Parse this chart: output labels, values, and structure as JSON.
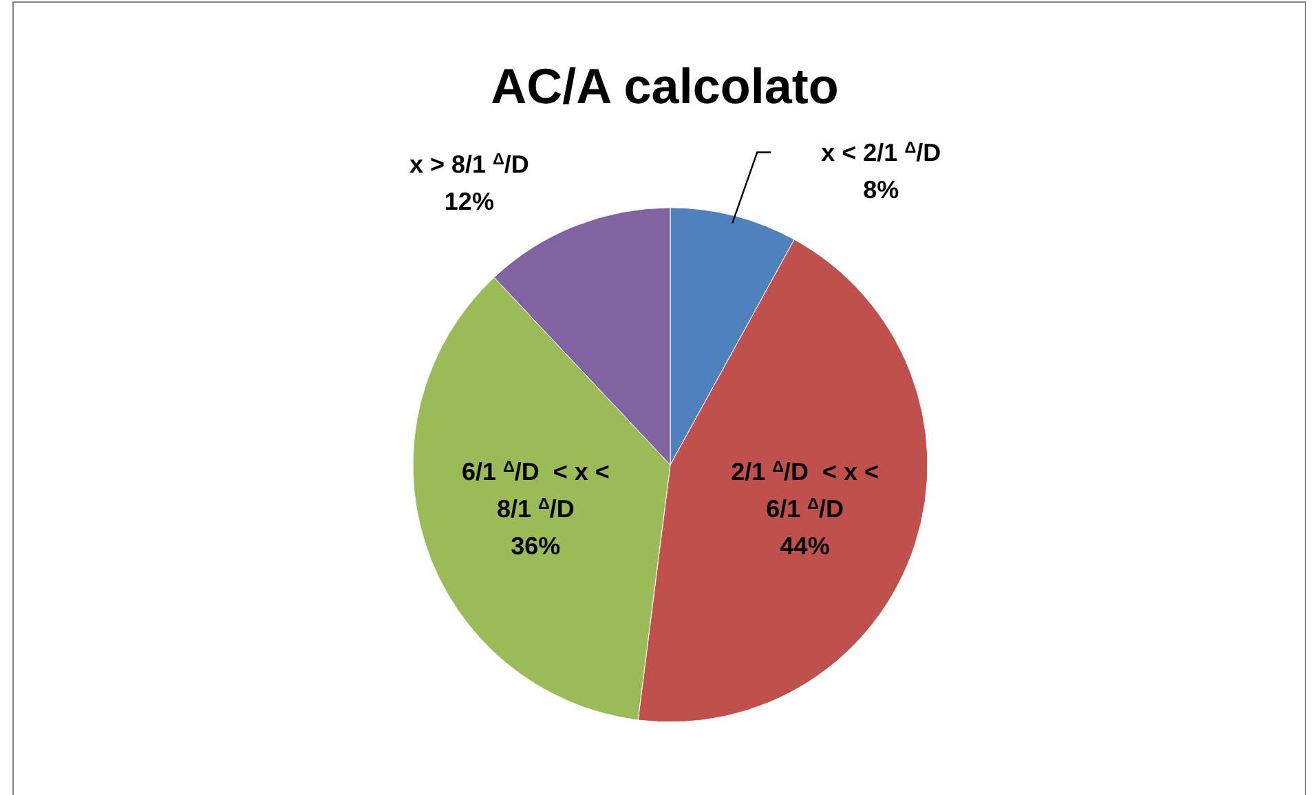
{
  "chart_data": {
    "type": "pie",
    "title": "AC/A calcolato",
    "categories": [
      "x < 2/1 $^{Δ}$/D",
      "2/1 $^{Δ}$/D  < x < 6/1 $^{Δ}$/D",
      "6/1 $^{Δ}$/D  < x < 8/1 $^{Δ}$/D",
      "x > 8/1 $^{Δ}$/D"
    ],
    "values": [
      8,
      44,
      36,
      12
    ],
    "colors": [
      "#4f81bd",
      "#c0504d",
      "#9bbb59",
      "#8064a2"
    ],
    "value_labels": [
      "8%",
      "44%",
      "36%",
      "12%"
    ]
  }
}
